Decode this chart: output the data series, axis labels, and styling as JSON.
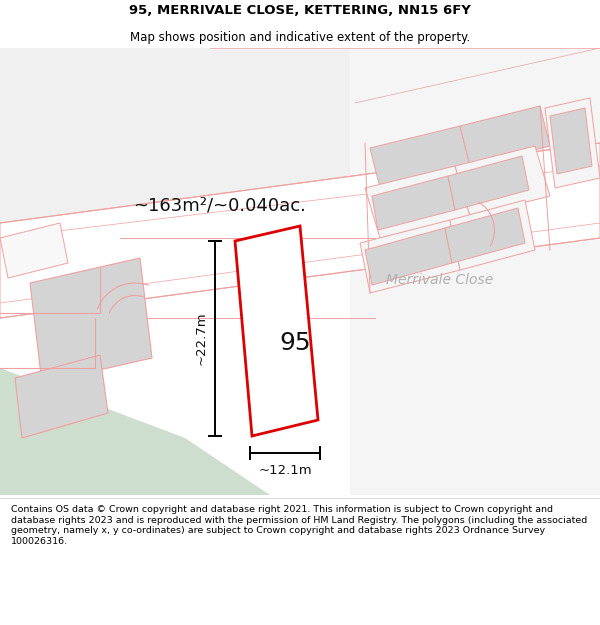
{
  "title_line1": "95, MERRIVALE CLOSE, KETTERING, NN15 6FY",
  "title_line2": "Map shows position and indicative extent of the property.",
  "footer_text": "Contains OS data © Crown copyright and database right 2021. This information is subject to Crown copyright and database rights 2023 and is reproduced with the permission of HM Land Registry. The polygons (including the associated geometry, namely x, y co-ordinates) are subject to Crown copyright and database rights 2023 Ordnance Survey 100026316.",
  "area_label": "~163m²/~0.040ac.",
  "width_label": "~12.1m",
  "height_label": "~22.7m",
  "house_number": "95",
  "street_name": "Merrivale Close",
  "bg_map_color": "#eef2ee",
  "road_color": "#ffffff",
  "plot_outline_color": "#dd0000",
  "plot_fill_color": "#ffffff",
  "building_fill_color": "#d4d4d4",
  "boundary_color": "#f0a0a0",
  "title_bg_color": "#ffffff",
  "footer_bg_color": "#ffffff",
  "title_fontsize": 9.5,
  "subtitle_fontsize": 8.5,
  "footer_fontsize": 6.8,
  "area_fontsize": 13,
  "street_fontsize": 10,
  "number_fontsize": 18,
  "dim_fontsize": 9.5
}
